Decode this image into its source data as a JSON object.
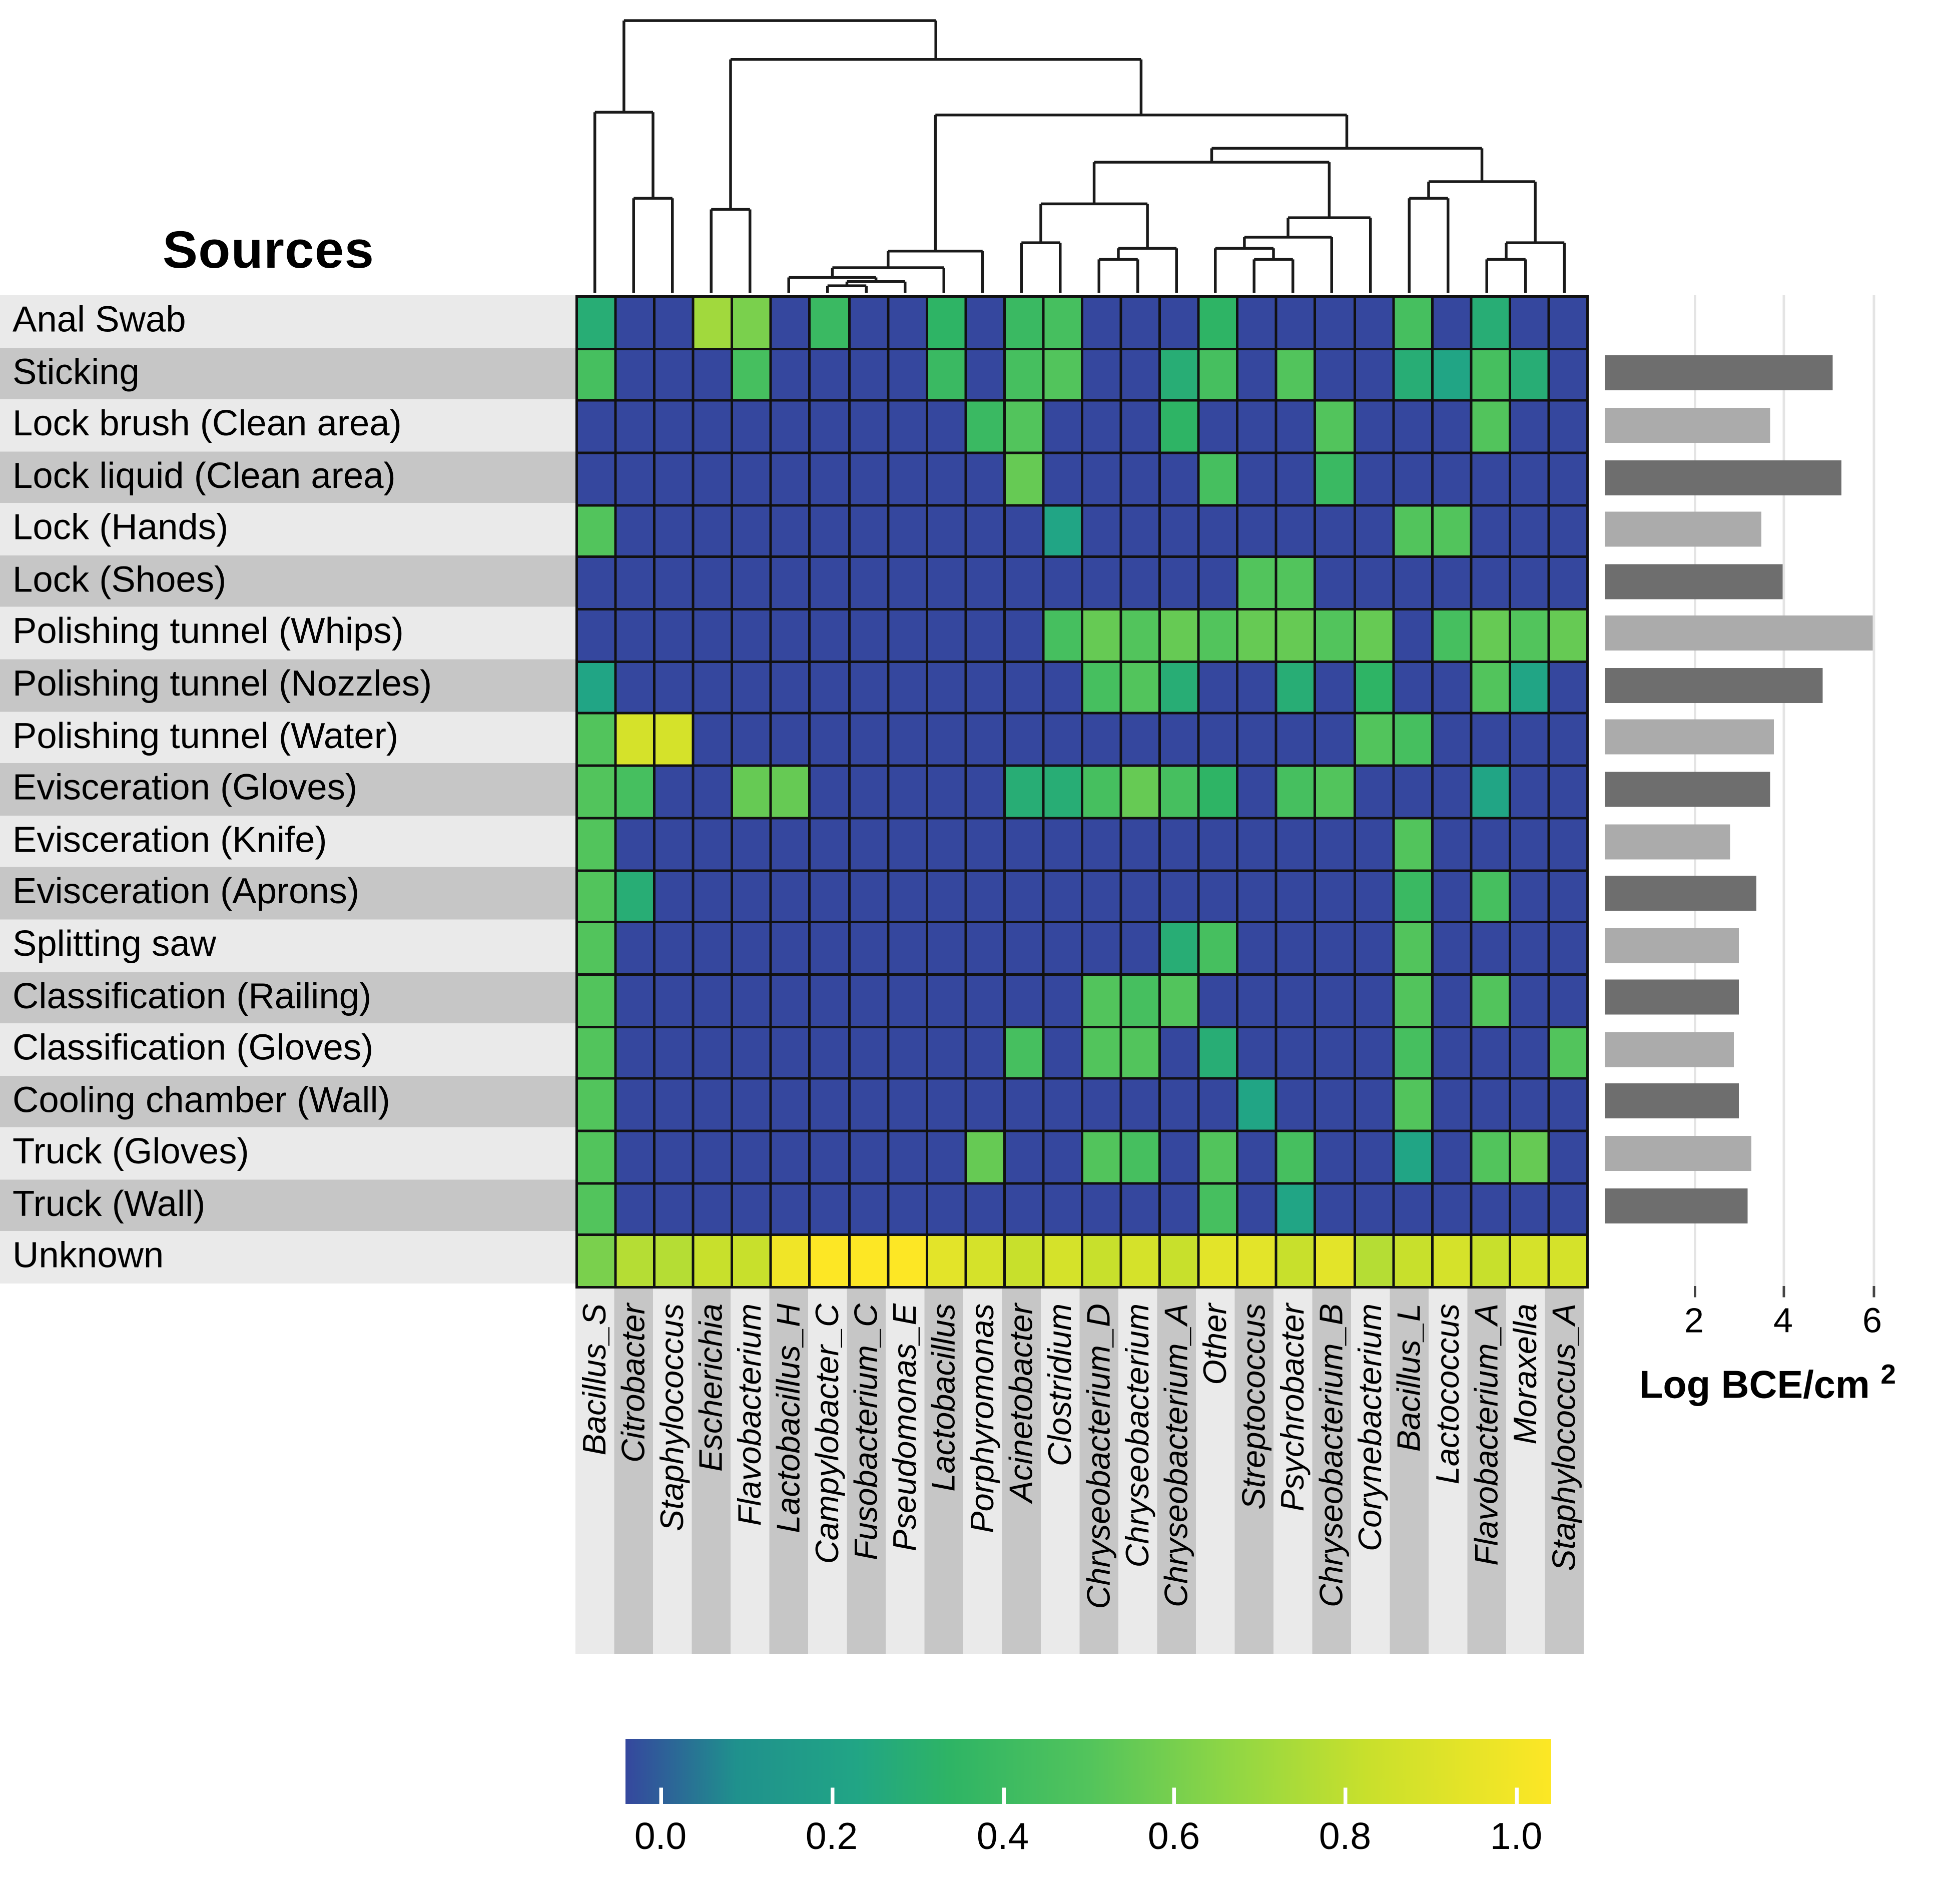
{
  "title": "Sources",
  "chart_data": {
    "type": "heatmap",
    "rows": [
      "Anal Swab",
      "Sticking",
      "Lock brush (Clean area)",
      "Lock liquid (Clean area)",
      "Lock (Hands)",
      "Lock (Shoes)",
      "Polishing tunnel (Whips)",
      "Polishing tunnel (Nozzles)",
      "Polishing tunnel  (Water)",
      "Evisceration (Gloves)",
      "Evisceration (Knife)",
      "Evisceration (Aprons)",
      "Splitting saw",
      "Classification (Railing)",
      "Classification (Gloves)",
      "Cooling chamber (Wall)",
      "Truck (Gloves)",
      "Truck (Wall)",
      "Unknown"
    ],
    "columns": [
      "Bacillus_S",
      "Citrobacter",
      "Staphylococcus",
      "Escherichia",
      "Flavobacterium",
      "Lactobacillus_H",
      "Campylobacter_C",
      "Fusobacterium_C",
      "Pseudomonas_E",
      "Lactobacillus",
      "Porphyromonas",
      "Acinetobacter",
      "Clostridium",
      "Chryseobacterium_D",
      "Chryseobacterium",
      "Chryseobacterium_A",
      "Other",
      "Streptococcus",
      "Psychrobacter",
      "Chryseobacterium_B",
      "Corynebacterium",
      "Bacillus_L",
      "Lactococcus",
      "Flavobacterium_A",
      "Moraxella",
      "Staphylococcus_A"
    ],
    "value_range": [
      0,
      1
    ],
    "values": [
      [
        0.3,
        0,
        0,
        0.7,
        0.6,
        0,
        0.4,
        0,
        0,
        0.35,
        0,
        0.4,
        0.45,
        0,
        0,
        0,
        0.35,
        0,
        0,
        0,
        0,
        0.45,
        0,
        0.3,
        0,
        0
      ],
      [
        0.45,
        0,
        0,
        0,
        0.45,
        0,
        0,
        0,
        0,
        0.4,
        0,
        0.45,
        0.5,
        0,
        0,
        0.3,
        0.45,
        0,
        0.5,
        0,
        0,
        0.3,
        0.25,
        0.45,
        0.3,
        0
      ],
      [
        0,
        0,
        0,
        0,
        0,
        0,
        0,
        0,
        0,
        0,
        0.4,
        0.5,
        0,
        0,
        0,
        0.35,
        0,
        0,
        0,
        0.5,
        0,
        0,
        0,
        0.5,
        0,
        0
      ],
      [
        0,
        0,
        0,
        0,
        0,
        0,
        0,
        0,
        0,
        0,
        0,
        0.55,
        0,
        0,
        0,
        0,
        0.45,
        0,
        0,
        0.4,
        0,
        0,
        0,
        0,
        0,
        0
      ],
      [
        0.5,
        0,
        0,
        0,
        0,
        0,
        0,
        0,
        0,
        0,
        0,
        0,
        0.25,
        0,
        0,
        0,
        0,
        0,
        0,
        0,
        0,
        0.5,
        0.5,
        0,
        0,
        0
      ],
      [
        0,
        0,
        0,
        0,
        0,
        0,
        0,
        0,
        0,
        0,
        0,
        0,
        0,
        0,
        0,
        0,
        0,
        0.5,
        0.5,
        0,
        0,
        0,
        0,
        0,
        0,
        0
      ],
      [
        0,
        0,
        0,
        0,
        0,
        0,
        0,
        0,
        0,
        0,
        0,
        0,
        0.45,
        0.55,
        0.5,
        0.55,
        0.5,
        0.55,
        0.55,
        0.5,
        0.55,
        0,
        0.45,
        0.55,
        0.5,
        0.55
      ],
      [
        0.25,
        0,
        0,
        0,
        0,
        0,
        0,
        0,
        0,
        0,
        0,
        0,
        0,
        0.45,
        0.5,
        0.3,
        0,
        0,
        0.3,
        0,
        0.35,
        0,
        0,
        0.5,
        0.25,
        0
      ],
      [
        0.5,
        0.85,
        0.85,
        0,
        0,
        0,
        0,
        0,
        0,
        0,
        0,
        0,
        0,
        0,
        0,
        0,
        0,
        0,
        0,
        0,
        0.5,
        0.45,
        0,
        0,
        0,
        0
      ],
      [
        0.5,
        0.45,
        0,
        0,
        0.55,
        0.55,
        0,
        0,
        0,
        0,
        0,
        0.3,
        0.3,
        0.45,
        0.55,
        0.45,
        0.35,
        0,
        0.45,
        0.5,
        0,
        0,
        0,
        0.25,
        0,
        0
      ],
      [
        0.5,
        0,
        0,
        0,
        0,
        0,
        0,
        0,
        0,
        0,
        0,
        0,
        0,
        0,
        0,
        0,
        0,
        0,
        0,
        0,
        0,
        0.5,
        0,
        0,
        0,
        0
      ],
      [
        0.5,
        0.3,
        0,
        0,
        0,
        0,
        0,
        0,
        0,
        0,
        0,
        0,
        0,
        0,
        0,
        0,
        0,
        0,
        0,
        0,
        0,
        0.4,
        0,
        0.45,
        0,
        0
      ],
      [
        0.5,
        0,
        0,
        0,
        0,
        0,
        0,
        0,
        0,
        0,
        0,
        0,
        0,
        0,
        0,
        0.3,
        0.45,
        0,
        0,
        0,
        0,
        0.5,
        0,
        0,
        0,
        0
      ],
      [
        0.5,
        0,
        0,
        0,
        0,
        0,
        0,
        0,
        0,
        0,
        0,
        0,
        0,
        0.5,
        0.45,
        0.5,
        0,
        0,
        0,
        0,
        0,
        0.5,
        0,
        0.5,
        0,
        0
      ],
      [
        0.5,
        0,
        0,
        0,
        0,
        0,
        0,
        0,
        0,
        0,
        0,
        0.45,
        0,
        0.5,
        0.5,
        0,
        0.3,
        0,
        0,
        0,
        0,
        0.45,
        0,
        0,
        0,
        0.5
      ],
      [
        0.5,
        0,
        0,
        0,
        0,
        0,
        0,
        0,
        0,
        0,
        0,
        0,
        0,
        0,
        0,
        0,
        0,
        0.25,
        0,
        0,
        0,
        0.5,
        0,
        0,
        0,
        0
      ],
      [
        0.5,
        0,
        0,
        0,
        0,
        0,
        0,
        0,
        0,
        0,
        0.55,
        0,
        0,
        0.5,
        0.45,
        0,
        0.5,
        0,
        0.45,
        0,
        0,
        0.25,
        0,
        0.5,
        0.55,
        0
      ],
      [
        0.5,
        0,
        0,
        0,
        0,
        0,
        0,
        0,
        0,
        0,
        0,
        0,
        0,
        0,
        0,
        0,
        0.45,
        0,
        0.25,
        0,
        0,
        0,
        0,
        0,
        0,
        0
      ],
      [
        0.6,
        0.75,
        0.75,
        0.8,
        0.8,
        0.95,
        1.0,
        1.0,
        1.0,
        0.9,
        0.85,
        0.8,
        0.85,
        0.8,
        0.85,
        0.8,
        0.9,
        0.9,
        0.8,
        0.9,
        0.75,
        0.8,
        0.85,
        0.8,
        0.85,
        0.85
      ]
    ],
    "colorbar": {
      "ticks": [
        "0.0",
        "0.2",
        "0.4",
        "0.6",
        "0.8",
        "1.0"
      ],
      "stops": [
        [
          0,
          "#35479e"
        ],
        [
          0.12,
          "#1f918d"
        ],
        [
          0.25,
          "#21a585"
        ],
        [
          0.35,
          "#2eb465"
        ],
        [
          0.5,
          "#52c45c"
        ],
        [
          0.65,
          "#8ed645"
        ],
        [
          0.8,
          "#c8e02c"
        ],
        [
          1,
          "#fde725"
        ]
      ]
    },
    "bar_chart": {
      "type": "bar",
      "orientation": "horizontal",
      "axis_label": "Log BCE/cm",
      "axis_label_sup": "2",
      "ticks": [
        2,
        4,
        6
      ],
      "xlim": [
        0,
        6.4
      ],
      "values": [
        null,
        5.1,
        3.7,
        5.3,
        3.5,
        4.0,
        6.0,
        4.9,
        3.8,
        3.7,
        2.8,
        3.4,
        3.0,
        3.0,
        2.9,
        3.0,
        3.3,
        3.2,
        null
      ],
      "bar_colors": [
        "#6e6e6e",
        "#ababab"
      ]
    },
    "dendrogram": {
      "h": 0.98,
      "c": [
        {
          "h": 0.65,
          "c": [
            {
              "leaf": 0
            },
            {
              "h": 0.34,
              "c": [
                {
                  "leaf": 1
                },
                {
                  "leaf": 2
                }
              ]
            }
          ]
        },
        {
          "h": 0.84,
          "c": [
            {
              "h": 0.3,
              "c": [
                {
                  "leaf": 3
                },
                {
                  "leaf": 4
                }
              ]
            },
            {
              "h": 0.64,
              "c": [
                {
                  "h": 0.15,
                  "c": [
                    {
                      "h": 0.09,
                      "c": [
                        {
                          "h": 0.055,
                          "c": [
                            {
                              "leaf": 5
                            },
                            {
                              "h": 0.04,
                              "c": [
                                {
                                  "h": 0.025,
                                  "c": [
                                    {
                                      "leaf": 6
                                    },
                                    {
                                      "leaf": 7
                                    }
                                  ]
                                },
                                {
                                  "leaf": 8
                                }
                              ]
                            }
                          ]
                        },
                        {
                          "leaf": 9
                        }
                      ]
                    },
                    {
                      "leaf": 10
                    }
                  ]
                },
                {
                  "h": 0.52,
                  "c": [
                    {
                      "h": 0.47,
                      "c": [
                        {
                          "h": 0.32,
                          "c": [
                            {
                              "h": 0.18,
                              "c": [
                                {
                                  "leaf": 11
                                },
                                {
                                  "leaf": 12
                                }
                              ]
                            },
                            {
                              "h": 0.16,
                              "c": [
                                {
                                  "h": 0.12,
                                  "c": [
                                    {
                                      "leaf": 13
                                    },
                                    {
                                      "leaf": 14
                                    }
                                  ]
                                },
                                {
                                  "leaf": 15
                                }
                              ]
                            }
                          ]
                        },
                        {
                          "h": 0.27,
                          "c": [
                            {
                              "h": 0.2,
                              "c": [
                                {
                                  "h": 0.16,
                                  "c": [
                                    {
                                      "leaf": 16
                                    },
                                    {
                                      "h": 0.12,
                                      "c": [
                                        {
                                          "leaf": 17
                                        },
                                        {
                                          "leaf": 18
                                        }
                                      ]
                                    }
                                  ]
                                },
                                {
                                  "leaf": 19
                                }
                              ]
                            },
                            {
                              "leaf": 20
                            }
                          ]
                        }
                      ]
                    },
                    {
                      "h": 0.4,
                      "c": [
                        {
                          "h": 0.34,
                          "c": [
                            {
                              "leaf": 21
                            },
                            {
                              "leaf": 22
                            }
                          ]
                        },
                        {
                          "h": 0.18,
                          "c": [
                            {
                              "h": 0.12,
                              "c": [
                                {
                                  "leaf": 23
                                },
                                {
                                  "leaf": 24
                                }
                              ]
                            },
                            {
                              "leaf": 25
                            }
                          ]
                        }
                      ]
                    }
                  ]
                }
              ]
            }
          ]
        }
      ]
    }
  },
  "colors": {
    "stripe_light": "#eaeaea",
    "stripe_dark": "#c6c6c6",
    "grid": "#111111",
    "gridline": "#e4e4e4",
    "dendro_line": "#1a1a1a",
    "text": "#000000"
  }
}
